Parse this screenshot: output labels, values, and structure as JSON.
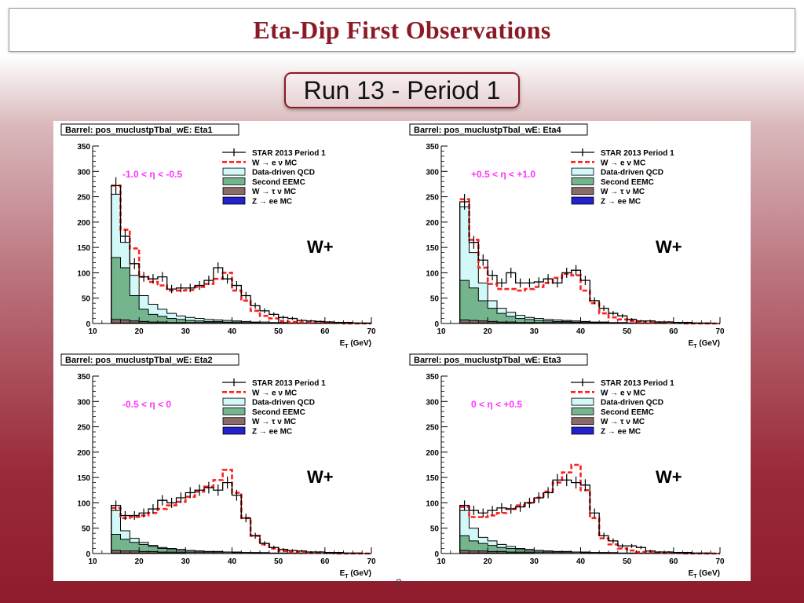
{
  "slide": {
    "title": "Eta-Dip First Observations",
    "subtitle": "Run 13 - Period 1",
    "page_number": "2"
  },
  "colors": {
    "data": "#000000",
    "w_enu": "#ff2020",
    "qcd_fill": "#d2f8f8",
    "eemc_fill": "#74b58e",
    "w_taunu_fill": "#8a6a6a",
    "z_ee_fill": "#2222cc",
    "eta_label": "#ff33ff"
  },
  "chart_data": [
    {
      "type": "histogram",
      "title": "Barrel: pos_muclustpTbal_wE: Eta1",
      "eta_range": "-1.0 < η < -0.5",
      "charge_label": "W+",
      "xlabel": "E_T (GeV)",
      "xlim": [
        10,
        70
      ],
      "ylim": [
        0,
        350
      ],
      "xticks": [
        "10",
        "20",
        "30",
        "40",
        "50",
        "60",
        "70"
      ],
      "yticks": [
        "0",
        "50",
        "100",
        "150",
        "200",
        "250",
        "300",
        "350"
      ],
      "legend": [
        "STAR 2013 Period 1",
        "W → e ν MC",
        "Data-driven QCD",
        "Second EEMC",
        "W → τ ν MC",
        "Z → ee MC"
      ],
      "bins": [
        14,
        16,
        18,
        20,
        22,
        24,
        26,
        28,
        30,
        32,
        34,
        36,
        38,
        40,
        42,
        44,
        46,
        48,
        50,
        52,
        54,
        56,
        58,
        60,
        62,
        64,
        66,
        68,
        70
      ],
      "series": {
        "data": [
          272,
          172,
          118,
          92,
          88,
          92,
          68,
          70,
          70,
          75,
          85,
          110,
          88,
          75,
          55,
          35,
          25,
          18,
          12,
          10,
          6,
          5,
          4,
          3,
          2,
          2,
          1,
          1
        ],
        "w_enu": [
          272,
          185,
          148,
          92,
          82,
          75,
          65,
          65,
          66,
          72,
          78,
          88,
          100,
          65,
          45,
          25,
          15,
          10,
          5,
          3,
          2,
          2,
          1,
          1,
          1,
          0,
          0,
          0
        ],
        "qcd_top": [
          255,
          160,
          95,
          55,
          38,
          28,
          20,
          15,
          12,
          10,
          8,
          7,
          6,
          5,
          4,
          3,
          3,
          2,
          2,
          1,
          1,
          1,
          1,
          1,
          0,
          0,
          0,
          0
        ],
        "eemc_top": [
          130,
          110,
          55,
          28,
          18,
          14,
          10,
          8,
          6,
          5,
          4,
          4,
          3,
          3,
          2,
          2,
          1,
          1,
          1,
          1,
          0,
          0,
          0,
          0,
          0,
          0,
          0,
          0
        ],
        "w_taunu_top": [
          8,
          7,
          5,
          4,
          3,
          3,
          2,
          2,
          2,
          2,
          2,
          2,
          2,
          1,
          1,
          1,
          0,
          0,
          0,
          0,
          0,
          0,
          0,
          0,
          0,
          0,
          0,
          0
        ],
        "z_ee_top": [
          1,
          1,
          1,
          1,
          1,
          1,
          1,
          1,
          0,
          0,
          0,
          0,
          0,
          0,
          0,
          0,
          0,
          0,
          0,
          0,
          0,
          0,
          0,
          0,
          0,
          0,
          0,
          0
        ]
      }
    },
    {
      "type": "histogram",
      "title": "Barrel: pos_muclustpTbal_wE: Eta4",
      "eta_range": "+0.5 < η < +1.0",
      "charge_label": "W+",
      "xlabel": "E_T (GeV)",
      "xlim": [
        10,
        70
      ],
      "ylim": [
        0,
        350
      ],
      "xticks": [
        "10",
        "20",
        "30",
        "40",
        "50",
        "60",
        "70"
      ],
      "yticks": [
        "0",
        "50",
        "100",
        "150",
        "200",
        "250",
        "300",
        "350"
      ],
      "legend": [
        "STAR 2013 Period 1",
        "W → e ν MC",
        "Data-driven QCD",
        "Second EEMC",
        "W → τ ν MC",
        "Z → ee MC"
      ],
      "bins": [
        14,
        16,
        18,
        20,
        22,
        24,
        26,
        28,
        30,
        32,
        34,
        36,
        38,
        40,
        42,
        44,
        46,
        48,
        50,
        52,
        54,
        56,
        58,
        60,
        62,
        64,
        66,
        68,
        70
      ],
      "series": {
        "data": [
          240,
          160,
          125,
          95,
          80,
          100,
          80,
          80,
          82,
          88,
          80,
          100,
          105,
          85,
          45,
          30,
          20,
          15,
          8,
          5,
          5,
          3,
          3,
          2,
          2,
          1,
          1,
          0
        ],
        "w_enu": [
          245,
          165,
          110,
          78,
          68,
          68,
          65,
          68,
          72,
          80,
          90,
          98,
          95,
          65,
          40,
          20,
          12,
          8,
          5,
          3,
          2,
          1,
          1,
          1,
          0,
          0,
          0,
          0
        ],
        "qcd_top": [
          230,
          140,
          80,
          45,
          30,
          22,
          16,
          12,
          10,
          8,
          7,
          6,
          5,
          4,
          3,
          3,
          2,
          2,
          1,
          1,
          1,
          1,
          0,
          0,
          0,
          0,
          0,
          0
        ],
        "eemc_top": [
          85,
          70,
          45,
          30,
          20,
          14,
          10,
          8,
          6,
          5,
          4,
          4,
          3,
          3,
          2,
          2,
          1,
          1,
          1,
          0,
          0,
          0,
          0,
          0,
          0,
          0,
          0,
          0
        ],
        "w_taunu_top": [
          7,
          6,
          5,
          4,
          3,
          3,
          2,
          2,
          2,
          2,
          2,
          2,
          2,
          1,
          1,
          1,
          0,
          0,
          0,
          0,
          0,
          0,
          0,
          0,
          0,
          0,
          0,
          0
        ],
        "z_ee_top": [
          1,
          1,
          1,
          1,
          1,
          1,
          1,
          1,
          0,
          0,
          0,
          0,
          0,
          0,
          0,
          0,
          0,
          0,
          0,
          0,
          0,
          0,
          0,
          0,
          0,
          0,
          0,
          0
        ]
      }
    },
    {
      "type": "histogram",
      "title": "Barrel: pos_muclustpTbal_wE: Eta2",
      "eta_range": "-0.5 < η < 0",
      "charge_label": "W+",
      "xlabel": "E_T (GeV)",
      "xlim": [
        10,
        70
      ],
      "ylim": [
        0,
        350
      ],
      "xticks": [
        "10",
        "20",
        "30",
        "40",
        "50",
        "60",
        "70"
      ],
      "yticks": [
        "0",
        "50",
        "100",
        "150",
        "200",
        "250",
        "300",
        "350"
      ],
      "legend": [
        "STAR 2013 Period 1",
        "W → e ν MC",
        "Data-driven QCD",
        "Second EEMC",
        "W → τ ν MC",
        "Z → ee MC"
      ],
      "bins": [
        14,
        16,
        18,
        20,
        22,
        24,
        26,
        28,
        30,
        32,
        34,
        36,
        38,
        40,
        42,
        44,
        46,
        48,
        50,
        52,
        54,
        56,
        58,
        60,
        62,
        64,
        66,
        68,
        70
      ],
      "series": {
        "data": [
          95,
          75,
          75,
          80,
          88,
          105,
          100,
          110,
          120,
          125,
          130,
          125,
          140,
          115,
          70,
          35,
          20,
          12,
          8,
          6,
          5,
          3,
          3,
          2,
          2,
          1,
          1,
          0
        ],
        "w_enu": [
          90,
          70,
          72,
          75,
          80,
          88,
          95,
          102,
          112,
          122,
          132,
          145,
          165,
          120,
          70,
          35,
          18,
          10,
          5,
          3,
          2,
          1,
          1,
          1,
          0,
          0,
          0,
          0
        ],
        "qcd_top": [
          85,
          45,
          30,
          22,
          16,
          12,
          10,
          8,
          6,
          5,
          4,
          4,
          3,
          3,
          2,
          2,
          2,
          1,
          1,
          1,
          1,
          0,
          0,
          0,
          0,
          0,
          0,
          0
        ],
        "eemc_top": [
          38,
          28,
          22,
          18,
          14,
          10,
          8,
          7,
          6,
          5,
          4,
          4,
          3,
          3,
          2,
          2,
          1,
          1,
          1,
          0,
          0,
          0,
          0,
          0,
          0,
          0,
          0,
          0
        ],
        "w_taunu_top": [
          6,
          5,
          5,
          4,
          4,
          3,
          3,
          3,
          3,
          3,
          3,
          3,
          3,
          2,
          2,
          1,
          1,
          0,
          0,
          0,
          0,
          0,
          0,
          0,
          0,
          0,
          0,
          0
        ],
        "z_ee_top": [
          1,
          1,
          1,
          1,
          1,
          1,
          1,
          1,
          0,
          0,
          0,
          0,
          0,
          0,
          0,
          0,
          0,
          0,
          0,
          0,
          0,
          0,
          0,
          0,
          0,
          0,
          0,
          0
        ]
      }
    },
    {
      "type": "histogram",
      "title": "Barrel: pos_muclustpTbal_wE: Eta3",
      "eta_range": "0 < η < +0.5",
      "charge_label": "W+",
      "xlabel": "E_T (GeV)",
      "xlim": [
        10,
        70
      ],
      "ylim": [
        0,
        350
      ],
      "xticks": [
        "10",
        "20",
        "30",
        "40",
        "50",
        "60",
        "70"
      ],
      "yticks": [
        "0",
        "50",
        "100",
        "150",
        "200",
        "250",
        "300",
        "350"
      ],
      "legend": [
        "STAR 2013 Period 1",
        "W → e ν MC",
        "Data-driven QCD",
        "Second EEMC",
        "W → τ ν MC",
        "Z → ee MC"
      ],
      "bins": [
        14,
        16,
        18,
        20,
        22,
        24,
        26,
        28,
        30,
        32,
        34,
        36,
        38,
        40,
        42,
        44,
        46,
        48,
        50,
        52,
        54,
        56,
        58,
        60,
        62,
        64,
        66,
        68,
        70
      ],
      "series": {
        "data": [
          95,
          85,
          80,
          85,
          90,
          88,
          92,
          100,
          110,
          120,
          145,
          145,
          140,
          135,
          80,
          35,
          25,
          15,
          15,
          12,
          5,
          3,
          3,
          2,
          2,
          1,
          1,
          0
        ],
        "w_enu": [
          92,
          72,
          72,
          75,
          80,
          88,
          95,
          100,
          110,
          122,
          140,
          160,
          175,
          125,
          70,
          30,
          18,
          10,
          6,
          3,
          2,
          1,
          1,
          1,
          0,
          0,
          0,
          0
        ],
        "qcd_top": [
          85,
          50,
          32,
          25,
          18,
          14,
          10,
          8,
          6,
          5,
          4,
          4,
          3,
          3,
          2,
          2,
          2,
          1,
          1,
          1,
          1,
          0,
          0,
          0,
          0,
          0,
          0,
          0
        ],
        "eemc_top": [
          35,
          25,
          20,
          16,
          12,
          10,
          8,
          7,
          6,
          5,
          4,
          4,
          3,
          3,
          2,
          2,
          1,
          1,
          1,
          0,
          0,
          0,
          0,
          0,
          0,
          0,
          0,
          0
        ],
        "w_taunu_top": [
          6,
          5,
          5,
          4,
          4,
          3,
          3,
          3,
          3,
          3,
          3,
          3,
          3,
          2,
          2,
          1,
          1,
          0,
          0,
          0,
          0,
          0,
          0,
          0,
          0,
          0,
          0,
          0
        ],
        "z_ee_top": [
          1,
          1,
          1,
          1,
          1,
          1,
          1,
          1,
          0,
          0,
          0,
          0,
          0,
          0,
          0,
          0,
          0,
          0,
          0,
          0,
          0,
          0,
          0,
          0,
          0,
          0,
          0,
          0
        ]
      }
    }
  ]
}
